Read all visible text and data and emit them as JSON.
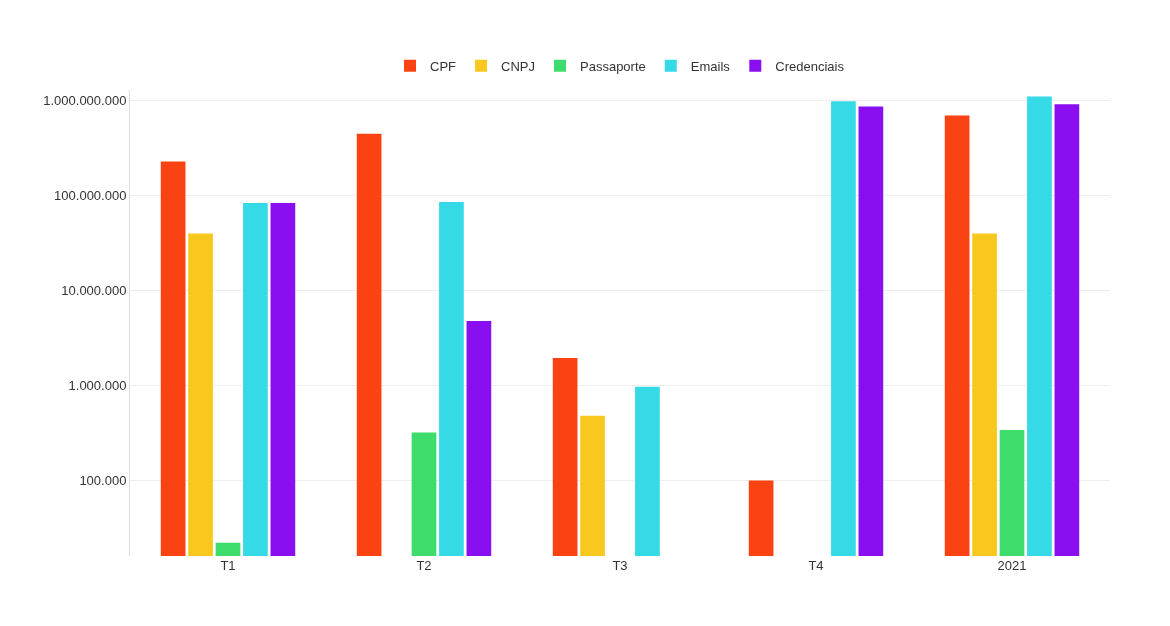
{
  "chart_data": {
    "type": "bar",
    "categories": [
      "T1",
      "T2",
      "T3",
      "T4",
      "2021"
    ],
    "series": [
      {
        "name": "CPF",
        "color": "#fb4213",
        "values": [
          230000000,
          450000000,
          1950000,
          100000,
          700000000
        ]
      },
      {
        "name": "CNPJ",
        "color": "#f8c81e",
        "values": [
          40000000,
          null,
          480000,
          null,
          40000000
        ]
      },
      {
        "name": "Passaporte",
        "color": "#3ddc6b",
        "values": [
          22000,
          320000,
          null,
          null,
          340000
        ]
      },
      {
        "name": "Emails",
        "color": "#35dae6",
        "values": [
          84000000,
          86000000,
          970000,
          990000000,
          1110000000
        ]
      },
      {
        "name": "Credenciais",
        "color": "#8a0ff0",
        "values": [
          84000000,
          4800000,
          null,
          870000000,
          920000000
        ]
      }
    ],
    "log": "y",
    "ylim": [
      16000,
      1300000000
    ],
    "yticks": [
      {
        "value": 100000,
        "label": "100.000"
      },
      {
        "value": 1000000,
        "label": "1.000.000"
      },
      {
        "value": 10000000,
        "label": "10.000.000"
      },
      {
        "value": 100000000,
        "label": "100.000.000"
      },
      {
        "value": 1000000000,
        "label": "1.000.000.000"
      }
    ],
    "grid": "y",
    "legend": "top"
  }
}
